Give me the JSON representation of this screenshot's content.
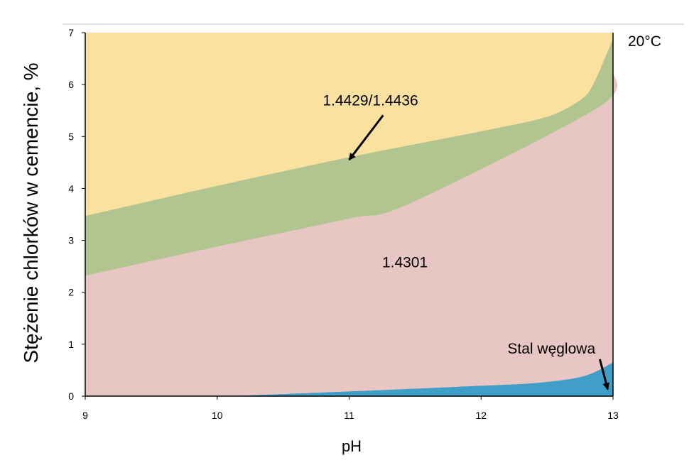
{
  "chart_data": {
    "type": "area",
    "xlabel": "pH",
    "ylabel": "Stężenie chlorków w cemencie, %",
    "xlim": [
      9,
      13
    ],
    "ylim": [
      0,
      7
    ],
    "xticks": [
      9,
      10,
      11,
      12,
      13
    ],
    "yticks": [
      0,
      1,
      2,
      3,
      4,
      5,
      6,
      7
    ],
    "grid": false,
    "temperature_label": "20°C",
    "series": [
      {
        "label": "1.4429/1.4436",
        "color": "#fbe1a0",
        "boundary": [
          [
            9,
            7
          ],
          [
            13,
            7
          ]
        ]
      },
      {
        "label": "",
        "color": "#b1c590",
        "boundary": [
          [
            9,
            3.47
          ],
          [
            10,
            4.05
          ],
          [
            11,
            4.6
          ],
          [
            12,
            5.1
          ],
          [
            12.5,
            5.38
          ],
          [
            12.75,
            5.7
          ],
          [
            12.85,
            6.0
          ],
          [
            13,
            6.88
          ]
        ]
      },
      {
        "label": "1.4301",
        "color": "#e8c6c4",
        "boundary": [
          [
            9,
            2.32
          ],
          [
            10,
            2.88
          ],
          [
            11,
            3.42
          ],
          [
            11.45,
            3.7
          ],
          [
            12.9,
            5.58
          ],
          [
            13,
            6.25
          ]
        ]
      },
      {
        "label": "Stal węglowa",
        "color": "#3f9fc9",
        "boundary": [
          [
            10.1,
            0
          ],
          [
            11,
            0.09
          ],
          [
            12,
            0.2
          ],
          [
            12.4,
            0.25
          ],
          [
            12.7,
            0.34
          ],
          [
            12.85,
            0.45
          ],
          [
            13,
            0.65
          ]
        ]
      }
    ],
    "annotations": [
      {
        "text": "1.4429/1.4436",
        "x": 10.8,
        "y": 5.6,
        "arrow_to": [
          11.0,
          4.55
        ]
      },
      {
        "text": "1.4301",
        "x": 11.25,
        "y": 2.48
      },
      {
        "text": "Stal węglowa",
        "x": 12.2,
        "y": 0.82,
        "arrow_to": [
          12.96,
          0.13
        ]
      }
    ]
  }
}
